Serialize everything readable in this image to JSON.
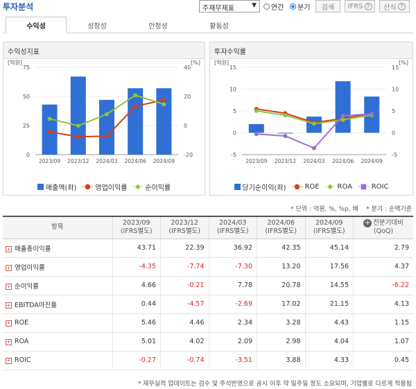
{
  "header": {
    "title": "투자분석",
    "select_value": "주재무제표",
    "radio_annual": "연간",
    "radio_quarter": "분기",
    "search_btn": "검색",
    "ifrs_btn": "IFRS",
    "calc_btn": "산식"
  },
  "tabs": [
    "수익성",
    "성장성",
    "안정성",
    "활동성"
  ],
  "left_panel": {
    "title": "수익성지표",
    "left_unit": "[억원]",
    "right_unit": "[%]",
    "left_ticks": [
      "75",
      "50",
      "25",
      "0"
    ],
    "right_ticks": [
      "40",
      "20",
      "0",
      "-20"
    ],
    "legend": [
      "매출액(좌)",
      "영업이익률",
      "순이익률"
    ]
  },
  "right_panel": {
    "title": "투자수익률",
    "left_unit": "[억원]",
    "right_unit": "[%]",
    "left_ticks": [
      "15",
      "10",
      "5",
      "0",
      "-5"
    ],
    "right_ticks": [
      "15",
      "10",
      "5",
      "0",
      "-5"
    ],
    "legend": [
      "당기순이익(좌)",
      "ROE",
      "ROA",
      "ROIC"
    ]
  },
  "chart_data": [
    {
      "type": "bar",
      "title": "수익성지표",
      "categories": [
        "2023/09",
        "2023/12",
        "2024/03",
        "2024/06",
        "2024/09"
      ],
      "ylim": [
        0,
        75
      ],
      "y2lim": [
        -20,
        40
      ],
      "series": [
        {
          "name": "매출액(좌)",
          "axis": "left",
          "type": "bar",
          "color": "#2f6fd6",
          "values": [
            43,
            67,
            47,
            57,
            57
          ]
        },
        {
          "name": "영업이익률",
          "axis": "right",
          "type": "line",
          "color": "#d2401e",
          "values": [
            -4.35,
            -7.74,
            -7.3,
            13.2,
            17.56
          ]
        },
        {
          "name": "순이익률",
          "axis": "right",
          "type": "line",
          "color": "#8cc43c",
          "values": [
            4.66,
            -0.21,
            7.78,
            20.78,
            14.55
          ]
        }
      ]
    },
    {
      "type": "bar",
      "title": "투자수익률",
      "categories": [
        "2023/09",
        "2023/12",
        "2024/03",
        "2024/06",
        "2024/09"
      ],
      "ylim": [
        -5,
        15
      ],
      "y2lim": [
        -5,
        15
      ],
      "series": [
        {
          "name": "당기순이익(좌)",
          "axis": "left",
          "type": "bar",
          "color": "#2f6fd6",
          "values": [
            2,
            -0.1,
            3.7,
            11.8,
            8.3
          ]
        },
        {
          "name": "ROE",
          "axis": "right",
          "type": "line",
          "color": "#d2401e",
          "values": [
            5.46,
            4.46,
            2.34,
            3.28,
            4.43
          ]
        },
        {
          "name": "ROA",
          "axis": "right",
          "type": "line",
          "color": "#8cc43c",
          "values": [
            5.01,
            4.02,
            2.09,
            2.98,
            4.04
          ]
        },
        {
          "name": "ROIC",
          "axis": "right",
          "type": "line",
          "color": "#9a6fd6",
          "values": [
            -0.27,
            -0.74,
            -3.51,
            3.88,
            4.33
          ]
        }
      ]
    }
  ],
  "notes": {
    "unit_note": "* 단위 : 억원, %, %p, 배",
    "quarter_note": "* 분기 : 순액기준",
    "footer": "* 재무실적 업데이트는 검수 및 주석반영으로 공시 이후 약 일주일 정도 소요되며, 기업별로 다르게 적용됨"
  },
  "table": {
    "head_item": "항목",
    "columns": [
      {
        "l1": "2023/09",
        "l2": "(IFRS별도)"
      },
      {
        "l1": "2023/12",
        "l2": "(IFRS별도)"
      },
      {
        "l1": "2024/03",
        "l2": "(IFRS별도)"
      },
      {
        "l1": "2024/06",
        "l2": "(IFRS별도)"
      },
      {
        "l1": "2024/09",
        "l2": "(IFRS별도)"
      },
      {
        "l1": "전분기대비",
        "l2": "(QoQ)"
      }
    ],
    "rows": [
      {
        "label": "매출총이익률",
        "values": [
          "43.71",
          "22.39",
          "36.92",
          "42.35",
          "45.14",
          "2.79"
        ]
      },
      {
        "label": "영업이익률",
        "values": [
          "-4.35",
          "-7.74",
          "-7.30",
          "13.20",
          "17.56",
          "4.37"
        ]
      },
      {
        "label": "순이익률",
        "values": [
          "4.66",
          "-0.21",
          "7.78",
          "20.78",
          "14.55",
          "-6.22"
        ]
      },
      {
        "label": "EBITDA마진율",
        "values": [
          "0.44",
          "-4.57",
          "-2.69",
          "17.02",
          "21.15",
          "4.13"
        ]
      },
      {
        "label": "ROE",
        "values": [
          "5.46",
          "4.46",
          "2.34",
          "3.28",
          "4.43",
          "1.15"
        ]
      },
      {
        "label": "ROA",
        "values": [
          "5.01",
          "4.02",
          "2.09",
          "2.98",
          "4.04",
          "1.07"
        ]
      },
      {
        "label": "ROIC",
        "values": [
          "-0.27",
          "-0.74",
          "-3.51",
          "3.88",
          "4.33",
          "0.45"
        ]
      }
    ]
  }
}
